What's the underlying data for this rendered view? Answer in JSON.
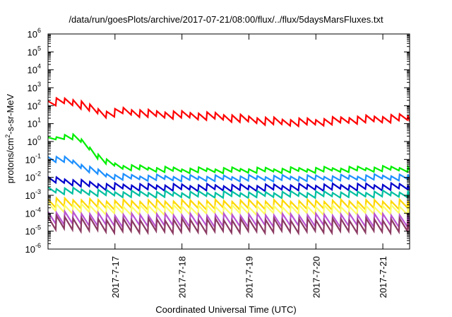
{
  "chart_data": {
    "type": "line",
    "title": "/data/run/goesPlots/archive/2017-07-21/08:00/flux/../flux/5daysMarsFluxes.txt",
    "xlabel": "Coordinated Universal Time (UTC)",
    "ylabel": {
      "pre": "protons/cm",
      "sup": "2",
      "post": "-s-sr-MeV"
    },
    "yscale": "log",
    "ylim": [
      1e-06,
      1000000.0
    ],
    "yticks": [
      {
        "base": "10",
        "exp": "-6",
        "value": 1e-06
      },
      {
        "base": "10",
        "exp": "-5",
        "value": 1e-05
      },
      {
        "base": "10",
        "exp": "-4",
        "value": 0.0001
      },
      {
        "base": "10",
        "exp": "-3",
        "value": 0.001
      },
      {
        "base": "10",
        "exp": "-2",
        "value": 0.01
      },
      {
        "base": "10",
        "exp": "-1",
        "value": 0.1
      },
      {
        "base": "10",
        "exp": "0",
        "value": 1
      },
      {
        "base": "10",
        "exp": "1",
        "value": 10
      },
      {
        "base": "10",
        "exp": "2",
        "value": 100
      },
      {
        "base": "10",
        "exp": "3",
        "value": 1000
      },
      {
        "base": "10",
        "exp": "4",
        "value": 10000
      },
      {
        "base": "10",
        "exp": "5",
        "value": 100000
      },
      {
        "base": "10",
        "exp": "6",
        "value": 1000000
      }
    ],
    "xlim": [
      0,
      5.4
    ],
    "xticks": [
      {
        "label": "2017-7-17",
        "value": 1
      },
      {
        "label": "2017-7-18",
        "value": 2
      },
      {
        "label": "2017-7-19",
        "value": 3
      },
      {
        "label": "2017-7-20",
        "value": 4
      },
      {
        "label": "2017-7-21",
        "value": 5
      }
    ],
    "grid": false,
    "legend": "none",
    "series": [
      {
        "color": "#ff0000",
        "stroke_width": 2.2,
        "anchors": [
          [
            0,
            120
          ],
          [
            0.2,
            180
          ],
          [
            0.35,
            170
          ],
          [
            0.5,
            110
          ],
          [
            0.7,
            55
          ],
          [
            0.9,
            32
          ],
          [
            1.1,
            50
          ],
          [
            1.5,
            35
          ],
          [
            2,
            30
          ],
          [
            2.5,
            25
          ],
          [
            3,
            17
          ],
          [
            3.5,
            12
          ],
          [
            4,
            12
          ],
          [
            4.5,
            16
          ],
          [
            5,
            18
          ],
          [
            5.4,
            22
          ]
        ],
        "amplitude": 0.35
      },
      {
        "color": "#00ee00",
        "stroke_width": 2.2,
        "anchors": [
          [
            0,
            1.2
          ],
          [
            0.15,
            1.6
          ],
          [
            0.3,
            2.2
          ],
          [
            0.45,
            1.4
          ],
          [
            0.6,
            0.5
          ],
          [
            0.75,
            0.15
          ],
          [
            0.9,
            0.06
          ],
          [
            1.1,
            0.04
          ],
          [
            1.5,
            0.03
          ],
          [
            2,
            0.025
          ],
          [
            2.5,
            0.025
          ],
          [
            3,
            0.025
          ],
          [
            3.5,
            0.025
          ],
          [
            4,
            0.026
          ],
          [
            4.5,
            0.028
          ],
          [
            5,
            0.03
          ],
          [
            5.4,
            0.03
          ]
        ],
        "amplitude": 0.22
      },
      {
        "color": "#1e90ff",
        "stroke_width": 2.2,
        "anchors": [
          [
            0,
            0.12
          ],
          [
            0.3,
            0.09
          ],
          [
            0.6,
            0.03
          ],
          [
            0.9,
            0.012
          ],
          [
            1.2,
            0.01
          ],
          [
            2,
            0.009
          ],
          [
            3,
            0.009
          ],
          [
            4,
            0.009
          ],
          [
            5,
            0.01
          ],
          [
            5.4,
            0.01
          ]
        ],
        "amplitude": 0.25
      },
      {
        "color": "#0000cc",
        "stroke_width": 2.2,
        "anchors": [
          [
            0,
            0.007
          ],
          [
            0.3,
            0.006
          ],
          [
            0.6,
            0.004
          ],
          [
            0.9,
            0.003
          ],
          [
            1.5,
            0.0028
          ],
          [
            3,
            0.0026
          ],
          [
            4,
            0.0028
          ],
          [
            5.4,
            0.003
          ]
        ],
        "amplitude": 0.3
      },
      {
        "color": "#00bfa0",
        "stroke_width": 2.2,
        "anchors": [
          [
            0,
            0.002
          ],
          [
            0.5,
            0.0016
          ],
          [
            1,
            0.0012
          ],
          [
            2,
            0.0011
          ],
          [
            3,
            0.0011
          ],
          [
            4,
            0.0011
          ],
          [
            5.4,
            0.0012
          ]
        ],
        "amplitude": 0.28
      },
      {
        "color": "#ffd700",
        "stroke_width": 2.2,
        "anchors": [
          [
            0,
            0.0004
          ],
          [
            1,
            0.0003
          ],
          [
            2,
            0.0003
          ],
          [
            3,
            0.0003
          ],
          [
            4,
            0.0003
          ],
          [
            5.4,
            0.0003
          ]
        ],
        "amplitude": 0.45
      },
      {
        "color": "#ffff66",
        "stroke_width": 2.2,
        "anchors": [
          [
            0,
            0.0002
          ],
          [
            1,
            0.00015
          ],
          [
            3,
            0.00015
          ],
          [
            5.4,
            0.00015
          ]
        ],
        "amplitude": 0.45
      },
      {
        "color": "#ba55d3",
        "stroke_width": 2.2,
        "anchors": [
          [
            0,
            6e-05
          ],
          [
            1,
            4e-05
          ],
          [
            3,
            4e-05
          ],
          [
            5.4,
            4e-05
          ]
        ],
        "amplitude": 0.65
      },
      {
        "color": "#8b3a62",
        "stroke_width": 2.2,
        "anchors": [
          [
            0,
            3e-05
          ],
          [
            1,
            2e-05
          ],
          [
            3,
            2e-05
          ],
          [
            5.4,
            2e-05
          ]
        ],
        "amplitude": 0.7
      }
    ]
  }
}
